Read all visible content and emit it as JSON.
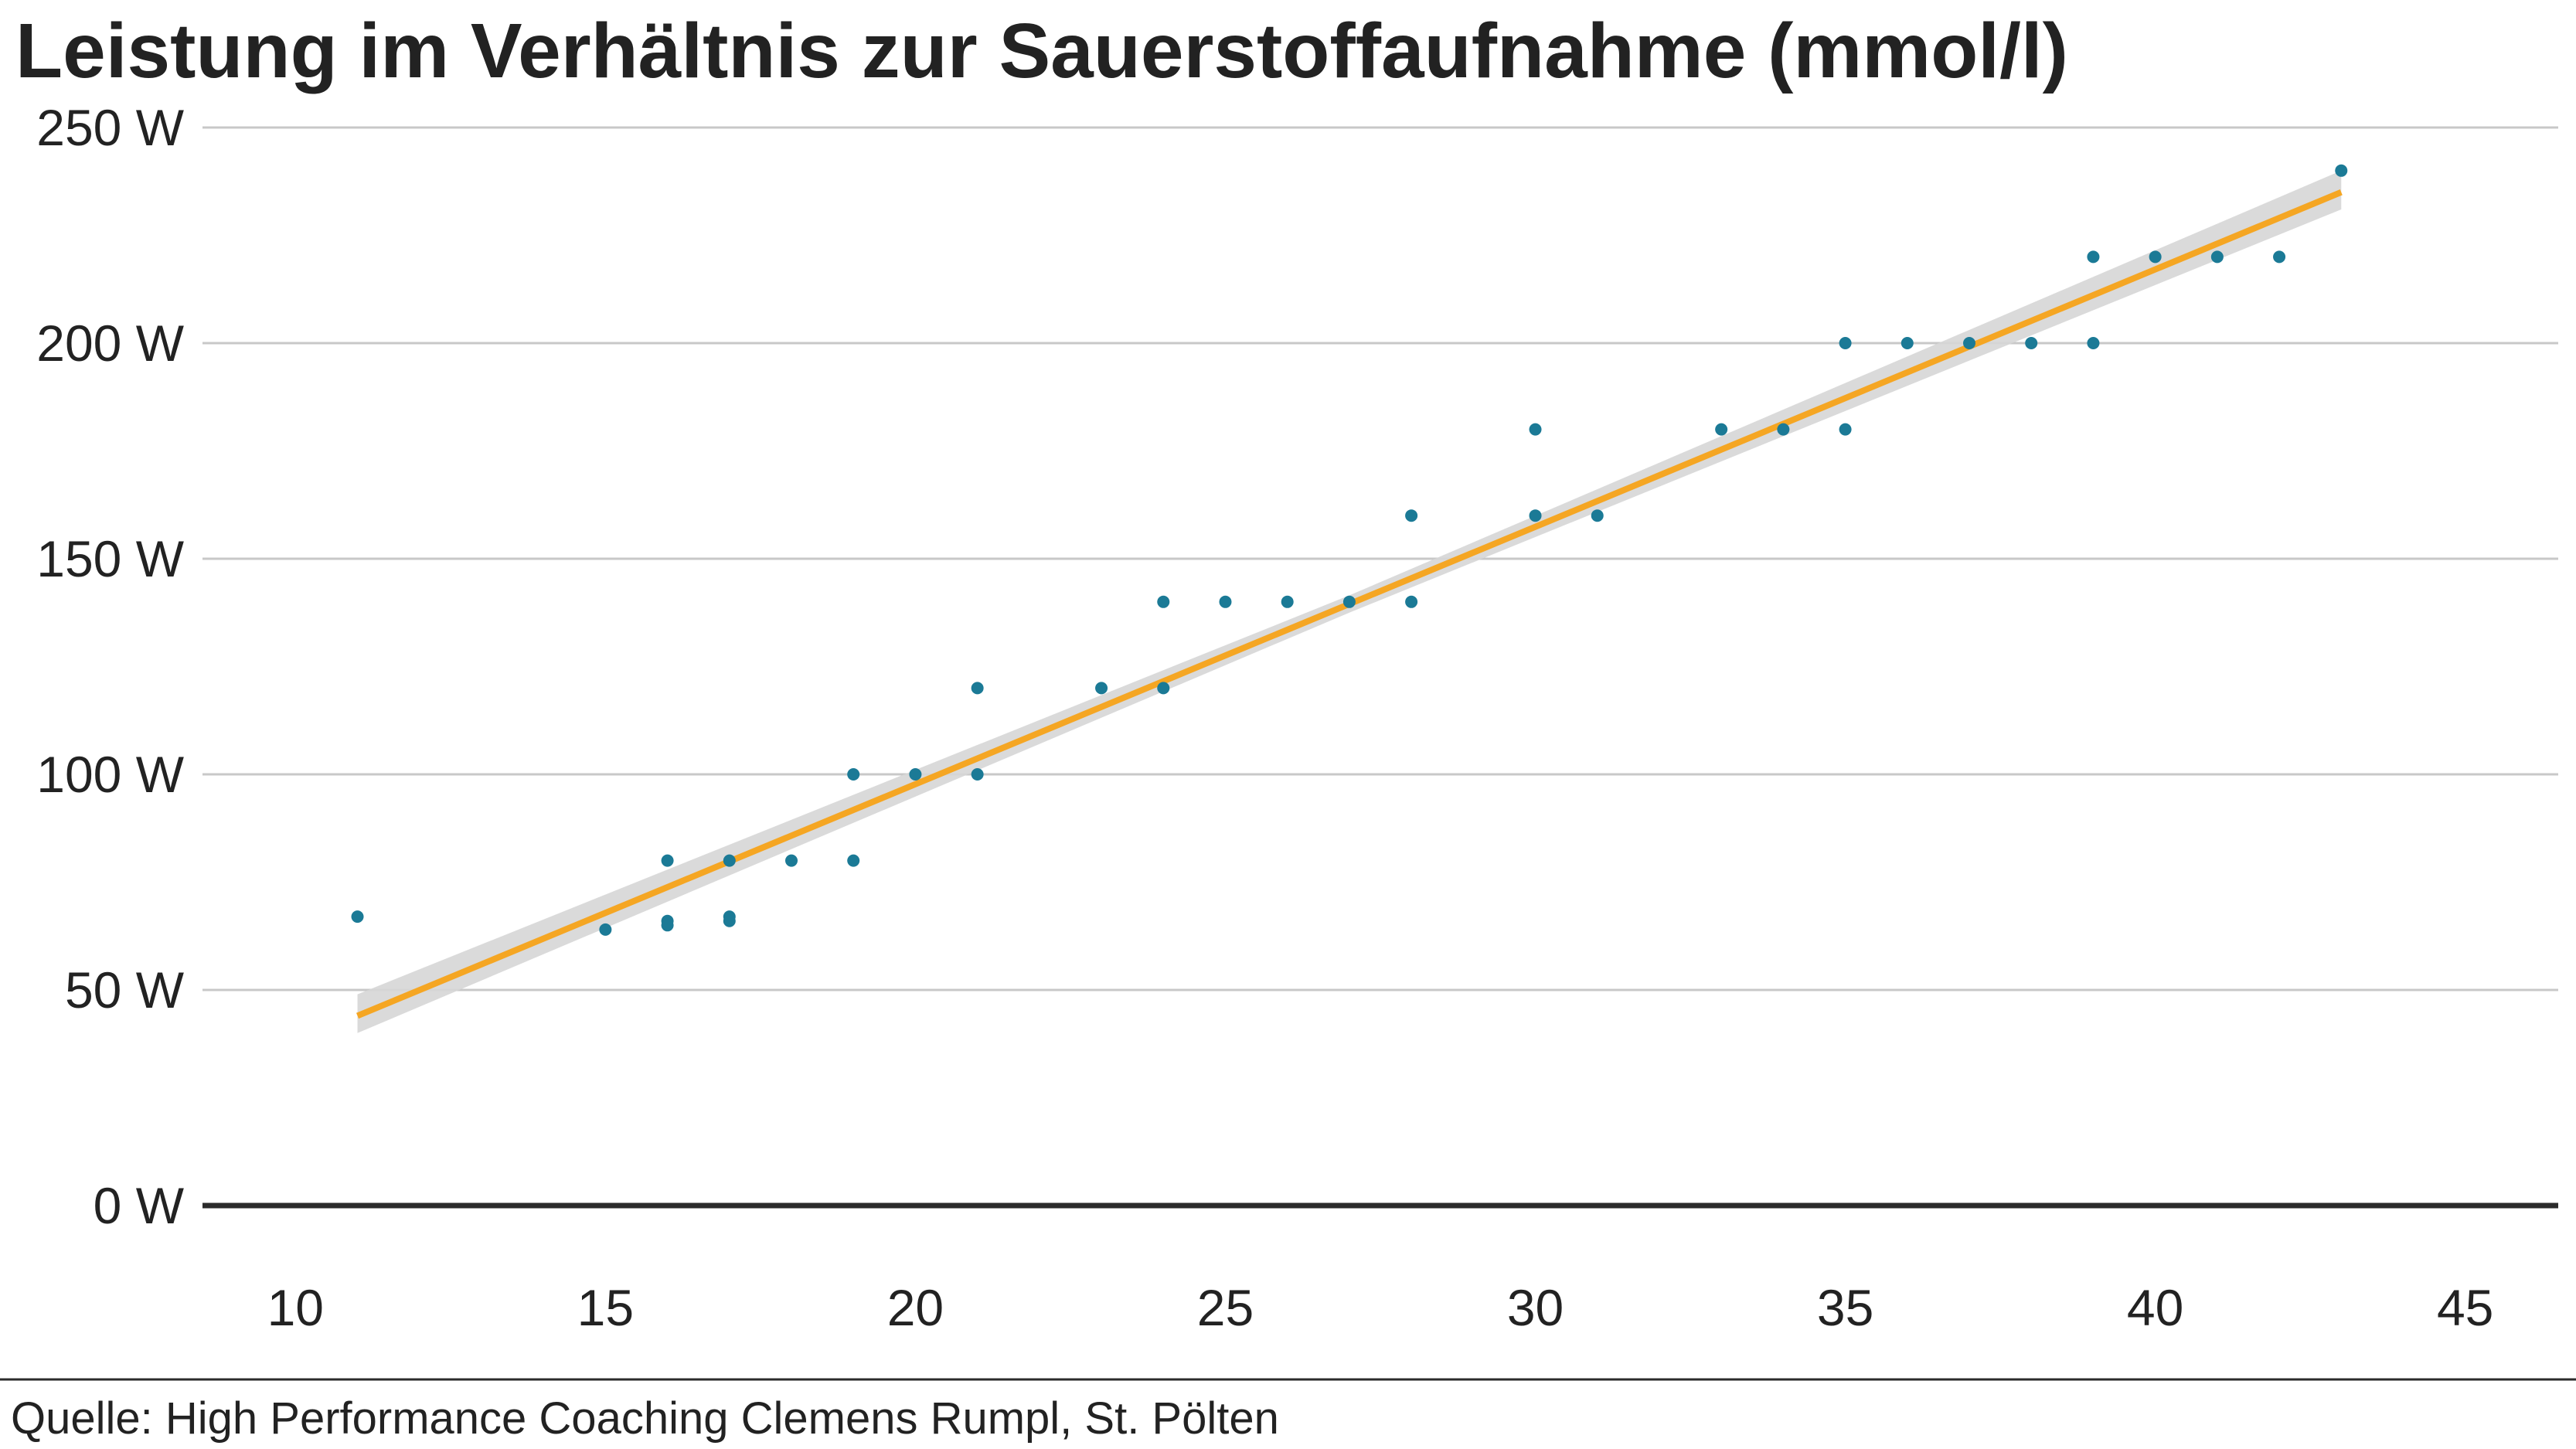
{
  "chart_data": {
    "type": "scatter",
    "title": "Leistung im Verhältnis zur Sauerstoffaufnahme (mmol/l)",
    "xlabel": "",
    "ylabel": "",
    "xlim": [
      8.5,
      46.5
    ],
    "ylim": [
      0,
      250
    ],
    "x_ticks": [
      10,
      15,
      20,
      25,
      30,
      35,
      40,
      45
    ],
    "y_ticks": [
      0,
      50,
      100,
      150,
      200,
      250
    ],
    "y_tick_labels": [
      "0 W",
      "50 W",
      "100 W",
      "150 W",
      "200 W",
      "250 W"
    ],
    "x_tick_labels": [
      "10",
      "15",
      "20",
      "25",
      "30",
      "35",
      "40",
      "45"
    ],
    "grid": true,
    "points": [
      {
        "x": 11,
        "y": 67
      },
      {
        "x": 15,
        "y": 64
      },
      {
        "x": 16,
        "y": 80
      },
      {
        "x": 16,
        "y": 66
      },
      {
        "x": 16,
        "y": 65
      },
      {
        "x": 17,
        "y": 80
      },
      {
        "x": 17,
        "y": 67
      },
      {
        "x": 17,
        "y": 66
      },
      {
        "x": 18,
        "y": 80
      },
      {
        "x": 19,
        "y": 100
      },
      {
        "x": 19,
        "y": 80
      },
      {
        "x": 20,
        "y": 100
      },
      {
        "x": 21,
        "y": 120
      },
      {
        "x": 21,
        "y": 100
      },
      {
        "x": 23,
        "y": 120
      },
      {
        "x": 24,
        "y": 140
      },
      {
        "x": 24,
        "y": 120
      },
      {
        "x": 25,
        "y": 140
      },
      {
        "x": 26,
        "y": 140
      },
      {
        "x": 27,
        "y": 140
      },
      {
        "x": 28,
        "y": 160
      },
      {
        "x": 28,
        "y": 140
      },
      {
        "x": 30,
        "y": 180
      },
      {
        "x": 30,
        "y": 160
      },
      {
        "x": 31,
        "y": 160
      },
      {
        "x": 33,
        "y": 180
      },
      {
        "x": 34,
        "y": 180
      },
      {
        "x": 35,
        "y": 200
      },
      {
        "x": 35,
        "y": 180
      },
      {
        "x": 36,
        "y": 200
      },
      {
        "x": 37,
        "y": 200
      },
      {
        "x": 38,
        "y": 200
      },
      {
        "x": 39,
        "y": 220
      },
      {
        "x": 39,
        "y": 200
      },
      {
        "x": 40,
        "y": 220
      },
      {
        "x": 41,
        "y": 220
      },
      {
        "x": 42,
        "y": 220
      },
      {
        "x": 43,
        "y": 240
      }
    ],
    "trend_line": {
      "x_start": 11,
      "y_start": 44,
      "x_end": 43,
      "y_end": 235,
      "confidence_band": [
        {
          "x": 11,
          "lower": 40,
          "upper": 49
        },
        {
          "x": 27,
          "lower": 137.5,
          "upper": 141.5
        },
        {
          "x": 43,
          "lower": 231,
          "upper": 240
        }
      ]
    },
    "colors": {
      "points": "#1b7a96",
      "trend_line": "#f5a623",
      "band": "#d6d6d6",
      "grid": "#c8c8c8",
      "baseline": "#2b2b2b",
      "text": "#222222"
    }
  },
  "footer": {
    "source": "Quelle: High Performance Coaching Clemens Rumpl, St. Pölten"
  }
}
